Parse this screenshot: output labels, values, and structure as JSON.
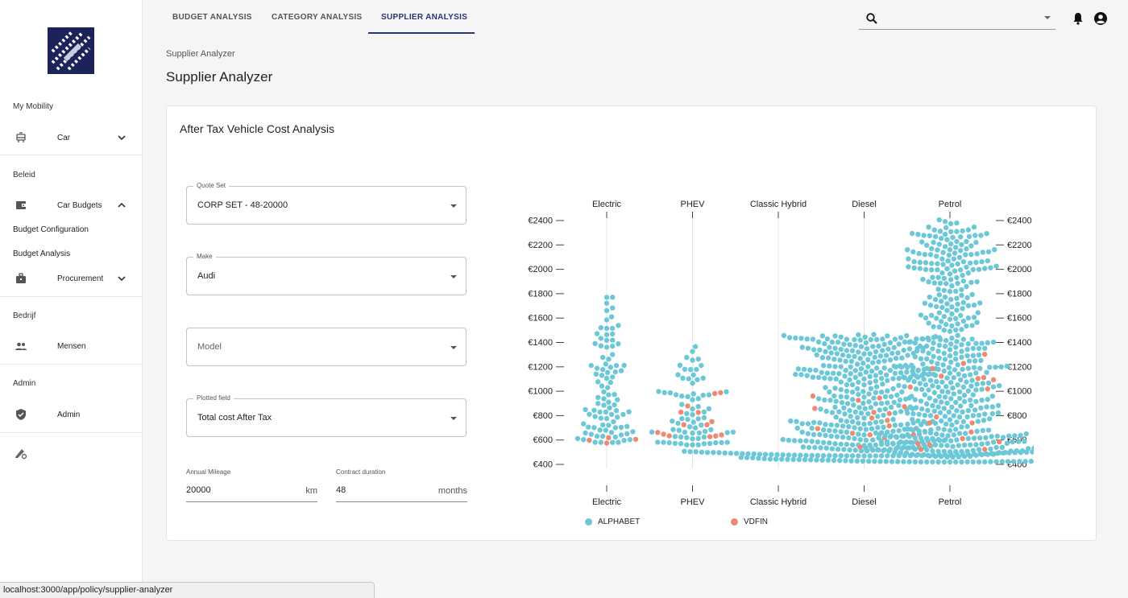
{
  "sidebar": {
    "sections": [
      {
        "title": "My Mobility"
      },
      {
        "title": "Beleid"
      },
      {
        "title": "Bedrijf"
      },
      {
        "title": "Admin"
      }
    ],
    "items": {
      "car": "Car",
      "car_budgets": "Car Budgets",
      "budget_configuration": "Budget Configuration",
      "budget_analysis": "Budget Analysis",
      "procurement": "Procurement",
      "mensen": "Mensen",
      "admin": "Admin"
    }
  },
  "nav": {
    "tabs": [
      "BUDGET ANALYSIS",
      "CATEGORY ANALYSIS",
      "SUPPLIER ANALYSIS"
    ],
    "active_tab": "SUPPLIER ANALYSIS",
    "search_value": ""
  },
  "breadcrumb": "Supplier Analyzer",
  "page_title": "Supplier Analyzer",
  "card": {
    "title": "After Tax Vehicle Cost Analysis",
    "quote_set": {
      "label": "Quote Set",
      "value": "CORP SET - 48-20000"
    },
    "make": {
      "label": "Make",
      "value": "Audi"
    },
    "model": {
      "placeholder": "Model"
    },
    "plotted_field": {
      "label": "Plotted field",
      "value": "Total cost After Tax"
    },
    "annual_mileage": {
      "label": "Annual Mileage",
      "value": "20000",
      "unit": "km"
    },
    "contract_duration": {
      "label": "Contract duration",
      "value": "48",
      "unit": "months"
    }
  },
  "chart_data": {
    "type": "scatter",
    "subtype": "beeswarm",
    "categories": [
      "Electric",
      "PHEV",
      "Classic Hybrid",
      "Diesel",
      "Petrol"
    ],
    "y_ticks": [
      "€2400",
      "€2200",
      "€2000",
      "€1800",
      "€1600",
      "€1400",
      "€1200",
      "€1000",
      "€800",
      "€600",
      "€400"
    ],
    "ylim": [
      400,
      2400
    ],
    "legend_position": "bottom",
    "grid": true,
    "series": [
      {
        "name": "ALPHABET",
        "color": "#6cc8d6"
      },
      {
        "name": "VDFIN",
        "color": "#ec8a72"
      }
    ],
    "distribution": {
      "Electric": {
        "ALPHABET": {
          "count": 95,
          "min": 580,
          "max": 1780
        },
        "VDFIN": {
          "count": 4,
          "min": 570,
          "max": 670
        }
      },
      "PHEV": {
        "ALPHABET": {
          "count": 75,
          "min": 560,
          "max": 1370
        },
        "VDFIN": {
          "count": 14,
          "min": 600,
          "max": 1000
        }
      },
      "Classic Hybrid": {
        "ALPHABET": {
          "count": 0
        },
        "VDFIN": {
          "count": 0
        }
      },
      "Diesel": {
        "ALPHABET": {
          "count": 420,
          "min": 470,
          "max": 1470
        },
        "VDFIN": {
          "count": 14,
          "min": 620,
          "max": 980
        }
      },
      "Petrol": {
        "ALPHABET": {
          "count": 560,
          "min": 420,
          "max": 2420
        },
        "VDFIN": {
          "count": 22,
          "min": 520,
          "max": 1330
        }
      }
    }
  },
  "status_url": "localhost:3000/app/policy/supplier-analyzer"
}
